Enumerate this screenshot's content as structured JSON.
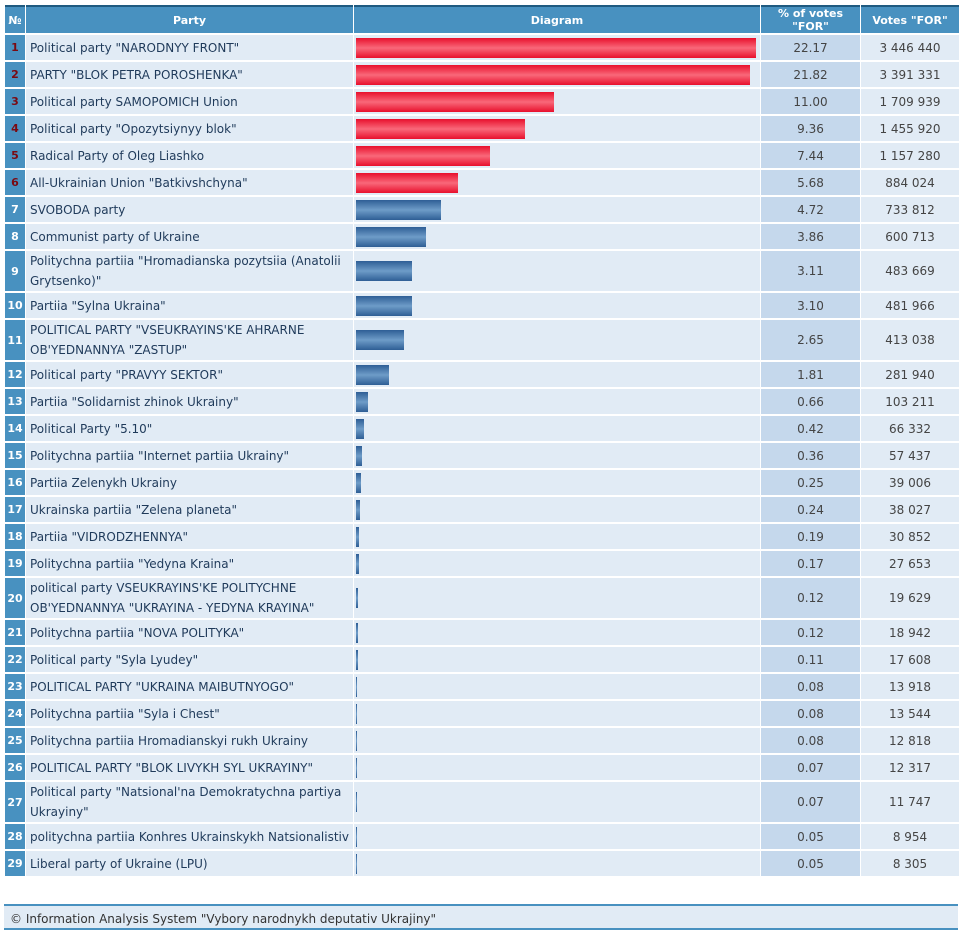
{
  "headers": {
    "num": "№",
    "party": "Party",
    "diagram": "Diagram",
    "pct": "% of votes \"FOR\"",
    "votes": "Votes \"FOR\""
  },
  "colors": {
    "top_bar": "#e8102c",
    "other_bar": "#3a6ca3",
    "header": "#4891c0"
  },
  "chart_data": {
    "type": "bar",
    "orientation": "horizontal",
    "xlim": [
      0,
      22.17
    ],
    "rows": [
      {
        "n": "1",
        "party": "Political party \"NARODNYY FRONT\"",
        "pct": 22.17,
        "pct_text": "22.17",
        "votes": "3 446 440"
      },
      {
        "n": "2",
        "party": "PARTY \"BLOK PETRA POROSHENKA\"",
        "pct": 21.82,
        "pct_text": "21.82",
        "votes": "3 391 331"
      },
      {
        "n": "3",
        "party": "Political party SAMOPOMICH Union",
        "pct": 11.0,
        "pct_text": "11.00",
        "votes": "1 709 939"
      },
      {
        "n": "4",
        "party": "Political party \"Opozytsiynyy blok\"",
        "pct": 9.36,
        "pct_text": "9.36",
        "votes": "1 455 920"
      },
      {
        "n": "5",
        "party": "Radical Party of Oleg Liashko",
        "pct": 7.44,
        "pct_text": "7.44",
        "votes": "1 157 280"
      },
      {
        "n": "6",
        "party": "All-Ukrainian Union \"Batkivshchyna\"",
        "pct": 5.68,
        "pct_text": "5.68",
        "votes": "884 024"
      },
      {
        "n": "7",
        "party": "SVOBODA party",
        "pct": 4.72,
        "pct_text": "4.72",
        "votes": "733 812"
      },
      {
        "n": "8",
        "party": "Communist party of Ukraine",
        "pct": 3.86,
        "pct_text": "3.86",
        "votes": "600 713"
      },
      {
        "n": "9",
        "party": "Politychna partiia \"Hromadianska pozytsiia (Anatolii Grytsenko)\"",
        "pct": 3.11,
        "pct_text": "3.11",
        "votes": "483 669"
      },
      {
        "n": "10",
        "party": "Partiia \"Sylna Ukraina\"",
        "pct": 3.1,
        "pct_text": "3.10",
        "votes": "481 966"
      },
      {
        "n": "11",
        "party": "POLITICAL PARTY \"VSEUKRAYINS'KE AHRARNE OB'YEDNANNYA \"ZASTUP\"",
        "pct": 2.65,
        "pct_text": "2.65",
        "votes": "413 038"
      },
      {
        "n": "12",
        "party": "Political party \"PRAVYY SEKTOR\"",
        "pct": 1.81,
        "pct_text": "1.81",
        "votes": "281 940"
      },
      {
        "n": "13",
        "party": "Partiia \"Solidarnist zhinok Ukrainy\"",
        "pct": 0.66,
        "pct_text": "0.66",
        "votes": "103 211"
      },
      {
        "n": "14",
        "party": "Political Party \"5.10\"",
        "pct": 0.42,
        "pct_text": "0.42",
        "votes": "66 332"
      },
      {
        "n": "15",
        "party": "Politychna partiia \"Internet partiia Ukrainy\"",
        "pct": 0.36,
        "pct_text": "0.36",
        "votes": "57 437"
      },
      {
        "n": "16",
        "party": "Partiia Zelenykh Ukrainy",
        "pct": 0.25,
        "pct_text": "0.25",
        "votes": "39 006"
      },
      {
        "n": "17",
        "party": "Ukrainska partiia \"Zelena planeta\"",
        "pct": 0.24,
        "pct_text": "0.24",
        "votes": "38 027"
      },
      {
        "n": "18",
        "party": "Partiia \"VIDRODZHENNYA\"",
        "pct": 0.19,
        "pct_text": "0.19",
        "votes": "30 852"
      },
      {
        "n": "19",
        "party": "Politychna partiia \"Yedyna Kraina\"",
        "pct": 0.17,
        "pct_text": "0.17",
        "votes": "27 653"
      },
      {
        "n": "20",
        "party": "political party VSEUKRAYINS'KE POLITYCHNE OB'YEDNANNYA \"UKRAYINA - YEDYNA KRAYINA\"",
        "pct": 0.12,
        "pct_text": "0.12",
        "votes": "19 629"
      },
      {
        "n": "21",
        "party": "Politychna partiia \"NOVA POLITYKA\"",
        "pct": 0.12,
        "pct_text": "0.12",
        "votes": "18 942"
      },
      {
        "n": "22",
        "party": "Political party \"Syla Lyudey\"",
        "pct": 0.11,
        "pct_text": "0.11",
        "votes": "17 608"
      },
      {
        "n": "23",
        "party": "POLITICAL PARTY \"UKRAINA MAIBUTNYOGO\"",
        "pct": 0.08,
        "pct_text": "0.08",
        "votes": "13 918"
      },
      {
        "n": "24",
        "party": "Politychna partiia \"Syla i Chest\"",
        "pct": 0.08,
        "pct_text": "0.08",
        "votes": "13 544"
      },
      {
        "n": "25",
        "party": "Politychna partiia Hromadianskyi rukh Ukrainy",
        "pct": 0.08,
        "pct_text": "0.08",
        "votes": "12 818"
      },
      {
        "n": "26",
        "party": "POLITICAL PARTY \"BLOK LIVYKH SYL UKRAYINY\"",
        "pct": 0.07,
        "pct_text": "0.07",
        "votes": "12 317"
      },
      {
        "n": "27",
        "party": "Political party \"Natsional'na Demokratychna partiya Ukrayiny\"",
        "pct": 0.07,
        "pct_text": "0.07",
        "votes": "11 747"
      },
      {
        "n": "28",
        "party": "politychna partiia Konhres Ukrainskykh Natsionalistiv",
        "pct": 0.05,
        "pct_text": "0.05",
        "votes": "8 954"
      },
      {
        "n": "29",
        "party": "Liberal party of Ukraine (LPU)",
        "pct": 0.05,
        "pct_text": "0.05",
        "votes": "8 305"
      }
    ]
  },
  "footer": "© Information Analysis System \"Vybory narodnykh deputativ Ukrajiny\""
}
